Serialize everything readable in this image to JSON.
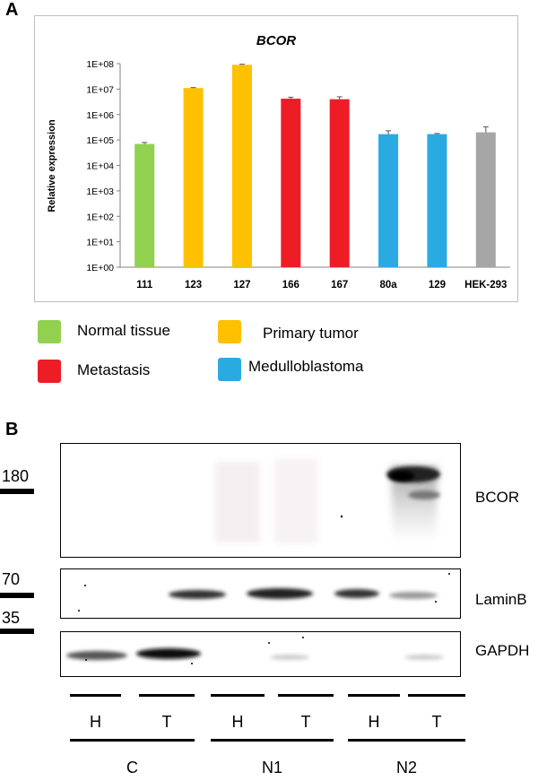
{
  "panel_a": {
    "letter": "A"
  },
  "chart_data": {
    "type": "bar",
    "title": "BCOR",
    "ylabel": "Relative expression",
    "xlabel": "",
    "yscale": "log",
    "ylim": [
      1,
      100000000
    ],
    "yticks": [
      "1E+00",
      "1E+01",
      "1E+02",
      "1E+03",
      "1E+04",
      "1E+05",
      "1E+06",
      "1E+07",
      "1E+08"
    ],
    "categories": [
      "111",
      "123",
      "127",
      "166",
      "167",
      "80a",
      "129",
      "HEK-293"
    ],
    "values": [
      70000,
      11000000,
      90000000,
      4200000,
      4000000,
      170000,
      170000,
      200000
    ],
    "error_upper": [
      80000,
      11500000,
      95000000,
      4800000,
      5000000,
      230000,
      180000,
      330000
    ],
    "bar_colors": [
      "#92d050",
      "#ffc000",
      "#ffc000",
      "#ee1c25",
      "#ee1c25",
      "#29abe2",
      "#29abe2",
      "#a6a6a6"
    ],
    "grid": false
  },
  "legend": [
    {
      "label": "Normal tissue",
      "color": "#92d050"
    },
    {
      "label": "Primary tumor",
      "color": "#ffc000"
    },
    {
      "label": "Metastasis",
      "color": "#ee1c25"
    },
    {
      "label": "Medulloblastoma",
      "color": "#29abe2"
    }
  ],
  "panel_b": {
    "letter": "B",
    "markers": [
      "180",
      "70",
      "35"
    ],
    "bands": [
      "BCOR",
      "LaminB",
      "GAPDH"
    ],
    "lanes": [
      "H",
      "T",
      "H",
      "T",
      "H",
      "T"
    ],
    "groups": [
      "C",
      "N1",
      "N2"
    ]
  }
}
